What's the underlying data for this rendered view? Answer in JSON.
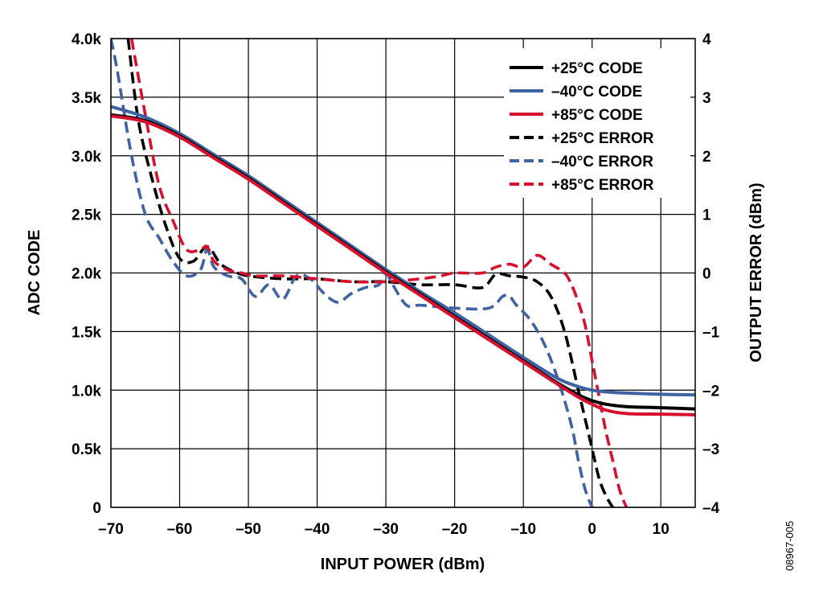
{
  "figure_id": "08967-005",
  "chart_data": {
    "type": "line",
    "title": "",
    "xlabel": "INPUT POWER (dBm)",
    "ylabel_left": "ADC CODE",
    "ylabel_right": "OUTPUT ERROR (dBm)",
    "xlim": [
      -70,
      15
    ],
    "ylim_left": [
      0,
      4000
    ],
    "ylim_right": [
      -4,
      4
    ],
    "x_ticks": [
      -70,
      -60,
      -50,
      -40,
      -30,
      -20,
      -10,
      0,
      10
    ],
    "x_tick_labels": [
      "–70",
      "–60",
      "–50",
      "–40",
      "–30",
      "–20",
      "–10",
      "0",
      "10"
    ],
    "y_left_ticks": [
      0,
      500,
      1000,
      1500,
      2000,
      2500,
      3000,
      3500,
      4000
    ],
    "y_left_tick_labels": [
      "0",
      "0.5k",
      "1.0k",
      "1.5k",
      "2.0k",
      "2.5k",
      "3.0k",
      "3.5k",
      "4.0k"
    ],
    "y_right_ticks": [
      -4,
      -3,
      -2,
      -1,
      0,
      1,
      2,
      3,
      4
    ],
    "y_right_tick_labels": [
      "–4",
      "–3",
      "–2",
      "–1",
      "0",
      "1",
      "2",
      "3",
      "4"
    ],
    "grid": true,
    "legend_position": "top-right",
    "series": [
      {
        "name": "+25°C CODE",
        "axis": "left",
        "color": "#000000",
        "dash": false,
        "x": [
          -70,
          -65,
          -60,
          -55,
          -50,
          -45,
          -40,
          -35,
          -30,
          -25,
          -20,
          -15,
          -10,
          -5,
          -2,
          0,
          2,
          5,
          10,
          15
        ],
        "y": [
          3350,
          3300,
          3170,
          2990,
          2810,
          2610,
          2410,
          2210,
          2010,
          1820,
          1630,
          1440,
          1250,
          1060,
          960,
          910,
          880,
          860,
          850,
          840
        ]
      },
      {
        "name": "–40°C CODE",
        "axis": "left",
        "color": "#3f62a3",
        "dash": false,
        "x": [
          -70,
          -65,
          -60,
          -55,
          -50,
          -45,
          -40,
          -35,
          -30,
          -25,
          -20,
          -15,
          -10,
          -5,
          -2,
          0,
          2,
          5,
          10,
          15
        ],
        "y": [
          3420,
          3330,
          3190,
          3010,
          2830,
          2630,
          2430,
          2230,
          2030,
          1840,
          1660,
          1470,
          1280,
          1100,
          1030,
          1000,
          985,
          975,
          965,
          960
        ]
      },
      {
        "name": "+85°C CODE",
        "axis": "left",
        "color": "#d7102e",
        "dash": false,
        "x": [
          -70,
          -65,
          -60,
          -55,
          -50,
          -45,
          -40,
          -35,
          -30,
          -25,
          -20,
          -15,
          -10,
          -5,
          -2,
          0,
          2,
          5,
          10,
          15
        ],
        "y": [
          3340,
          3290,
          3160,
          2980,
          2800,
          2600,
          2400,
          2200,
          2000,
          1810,
          1620,
          1430,
          1240,
          1050,
          940,
          880,
          830,
          800,
          795,
          790
        ]
      },
      {
        "name": "+25°C ERROR",
        "axis": "right",
        "color": "#000000",
        "dash": true,
        "x": [
          -67.5,
          -66,
          -64,
          -62,
          -60,
          -58,
          -56,
          -54,
          -52,
          -50,
          -45,
          -40,
          -35,
          -30,
          -25,
          -20,
          -16,
          -14,
          -12,
          -10,
          -8,
          -6,
          -4,
          -2,
          -1,
          0,
          1,
          2,
          3
        ],
        "y": [
          4,
          2.6,
          1.6,
          0.8,
          0.25,
          0.2,
          0.45,
          0.15,
          0.02,
          -0.05,
          -0.1,
          -0.1,
          -0.15,
          -0.15,
          -0.2,
          -0.2,
          -0.25,
          -0.02,
          -0.05,
          -0.07,
          -0.15,
          -0.4,
          -1.0,
          -2.0,
          -2.5,
          -3.0,
          -3.5,
          -3.8,
          -4
        ]
      },
      {
        "name": "–40°C ERROR",
        "axis": "right",
        "color": "#3f62a3",
        "dash": true,
        "x": [
          -70,
          -69,
          -67,
          -65,
          -63,
          -61,
          -59,
          -57,
          -56,
          -55,
          -53,
          -51,
          -49,
          -47,
          -45,
          -43,
          -41,
          -39,
          -37,
          -35,
          -33,
          -31,
          -30,
          -29,
          -27,
          -25,
          -20,
          -15,
          -13,
          -12,
          -11,
          -9,
          -7,
          -5,
          -3,
          -2,
          -1,
          0
        ],
        "y": [
          4,
          3.4,
          2.0,
          1.0,
          0.6,
          0.2,
          -0.05,
          0.05,
          0.4,
          0.1,
          -0.05,
          -0.1,
          -0.4,
          -0.2,
          -0.45,
          -0.05,
          -0.1,
          -0.35,
          -0.5,
          -0.35,
          -0.25,
          -0.2,
          0.0,
          -0.2,
          -0.55,
          -0.55,
          -0.6,
          -0.6,
          -0.4,
          -0.4,
          -0.55,
          -0.8,
          -1.2,
          -1.8,
          -2.6,
          -3.2,
          -3.7,
          -4
        ]
      },
      {
        "name": "+85°C ERROR",
        "axis": "right",
        "color": "#d7102e",
        "dash": true,
        "x": [
          -67,
          -65,
          -63,
          -61,
          -59,
          -57,
          -56,
          -55,
          -53,
          -51,
          -49,
          -45,
          -40,
          -35,
          -30,
          -25,
          -22,
          -20,
          -16,
          -14,
          -12,
          -10,
          -8,
          -6,
          -4,
          -3,
          -2,
          -1,
          0,
          1,
          2,
          3,
          4,
          5
        ],
        "y": [
          4,
          2.7,
          1.5,
          0.9,
          0.4,
          0.4,
          0.45,
          0.2,
          0.05,
          0.0,
          -0.05,
          -0.05,
          -0.1,
          -0.15,
          -0.15,
          -0.1,
          -0.05,
          0.0,
          0.0,
          0.1,
          0.15,
          0.1,
          0.3,
          0.15,
          0.0,
          -0.2,
          -0.5,
          -0.9,
          -1.5,
          -2.1,
          -2.7,
          -3.2,
          -3.7,
          -4
        ]
      }
    ]
  }
}
